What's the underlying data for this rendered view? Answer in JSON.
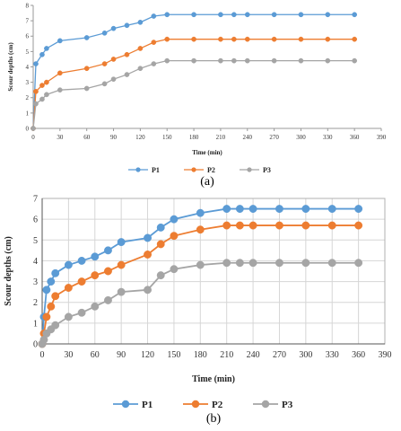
{
  "chart_data": [
    {
      "type": "line",
      "caption": "(a)",
      "xlabel": "Time (min)",
      "ylabel": "Scour depths (cm)",
      "xlim": [
        0,
        390
      ],
      "ylim": [
        0,
        8
      ],
      "xticks": [
        0,
        30,
        60,
        90,
        120,
        150,
        180,
        210,
        240,
        270,
        300,
        330,
        360,
        390
      ],
      "yticks": [
        0,
        1,
        2,
        3,
        4,
        5,
        6,
        7,
        8
      ],
      "grid": "none",
      "legend_position": "bottom",
      "x": [
        0,
        3,
        10,
        15,
        30,
        60,
        80,
        90,
        105,
        120,
        135,
        150,
        180,
        210,
        225,
        240,
        270,
        300,
        330,
        360
      ],
      "series": [
        {
          "name": "P1",
          "color": "#5b9bd5",
          "values": [
            0,
            4.2,
            4.8,
            5.2,
            5.7,
            5.9,
            6.2,
            6.5,
            6.7,
            6.9,
            7.3,
            7.4,
            7.4,
            7.4,
            7.4,
            7.4,
            7.4,
            7.4,
            7.4,
            7.4
          ]
        },
        {
          "name": "P2",
          "color": "#ed7d31",
          "values": [
            0,
            2.4,
            2.8,
            3.0,
            3.6,
            3.9,
            4.2,
            4.5,
            4.8,
            5.2,
            5.6,
            5.8,
            5.8,
            5.8,
            5.8,
            5.8,
            5.8,
            5.8,
            5.8,
            5.8
          ]
        },
        {
          "name": "P3",
          "color": "#a5a5a5",
          "values": [
            0,
            1.6,
            1.9,
            2.2,
            2.5,
            2.6,
            2.9,
            3.2,
            3.5,
            3.9,
            4.2,
            4.4,
            4.4,
            4.4,
            4.4,
            4.4,
            4.4,
            4.4,
            4.4,
            4.4
          ]
        }
      ]
    },
    {
      "type": "line",
      "caption": "(b)",
      "xlabel": "Time (min)",
      "ylabel": "Scour depths (cm)",
      "xlim": [
        0,
        390
      ],
      "ylim": [
        0,
        7
      ],
      "xticks": [
        0,
        30,
        60,
        90,
        120,
        150,
        180,
        210,
        240,
        270,
        300,
        330,
        360,
        390
      ],
      "yticks": [
        0,
        1,
        2,
        3,
        4,
        5,
        6,
        7
      ],
      "grid": "both",
      "legend_position": "bottom",
      "x": [
        0,
        2,
        5,
        10,
        15,
        30,
        45,
        60,
        75,
        90,
        120,
        135,
        150,
        180,
        210,
        225,
        240,
        270,
        300,
        330,
        360
      ],
      "series": [
        {
          "name": "P1",
          "color": "#5b9bd5",
          "values": [
            0,
            1.3,
            2.6,
            3.0,
            3.4,
            3.8,
            4.0,
            4.2,
            4.5,
            4.9,
            5.1,
            5.6,
            6.0,
            6.3,
            6.5,
            6.5,
            6.5,
            6.5,
            6.5,
            6.5,
            6.5
          ]
        },
        {
          "name": "P2",
          "color": "#ed7d31",
          "values": [
            0,
            0.5,
            1.3,
            1.8,
            2.3,
            2.7,
            3.0,
            3.3,
            3.5,
            3.8,
            4.3,
            4.8,
            5.2,
            5.5,
            5.7,
            5.7,
            5.7,
            5.7,
            5.7,
            5.7,
            5.7
          ]
        },
        {
          "name": "P3",
          "color": "#a5a5a5",
          "values": [
            0,
            0.2,
            0.5,
            0.7,
            0.9,
            1.3,
            1.5,
            1.8,
            2.1,
            2.5,
            2.6,
            3.3,
            3.6,
            3.8,
            3.9,
            3.9,
            3.9,
            3.9,
            3.9,
            3.9,
            3.9
          ]
        }
      ]
    }
  ]
}
